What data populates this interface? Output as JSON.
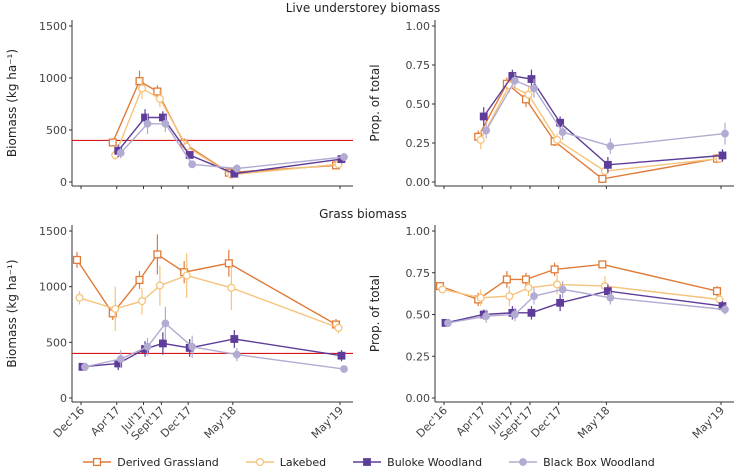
{
  "figure": {
    "colors": {
      "Derived Grassland": "#e07b39",
      "Lakebed": "#f6c37b",
      "Buloke Woodland": "#5e3c99",
      "Black Box Woodland": "#b2abd2",
      "threshold": "#d7191c"
    },
    "x_tick_labels": [
      "Dec'16",
      "Apr'17",
      "Jul'17",
      "Sept'17",
      "Dec'17",
      "May'18",
      "May'19"
    ],
    "row_titles": [
      "Live understorey biomass",
      "Grass biomass"
    ]
  },
  "legend": [
    {
      "name": "Derived Grassland",
      "marker": "square-open"
    },
    {
      "name": "Lakebed",
      "marker": "circle-open"
    },
    {
      "name": "Buloke Woodland",
      "marker": "square-filled"
    },
    {
      "name": "Black Box Woodland",
      "marker": "circle-filled"
    }
  ],
  "chart_data": [
    {
      "type": "line",
      "title": "Live understorey biomass",
      "ylabel": "Biomass (kg ha⁻¹)",
      "ylim": [
        0,
        1500
      ],
      "yticks": [
        0,
        500,
        1000,
        1500
      ],
      "threshold": 400,
      "x": [
        "Apr'17",
        "Jul'17",
        "Sept'17",
        "Dec'17",
        "May'18",
        "May'19"
      ],
      "series": [
        {
          "name": "Derived Grassland",
          "values": [
            380,
            970,
            870,
            370,
            90,
            160
          ],
          "err": [
            40,
            100,
            60,
            50,
            20,
            30
          ]
        },
        {
          "name": "Lakebed",
          "values": [
            260,
            900,
            800,
            340,
            70,
            170
          ],
          "err": [
            50,
            100,
            80,
            60,
            20,
            30
          ]
        },
        {
          "name": "Buloke Woodland",
          "values": [
            300,
            620,
            620,
            260,
            80,
            220
          ],
          "err": [
            60,
            80,
            60,
            30,
            20,
            40
          ]
        },
        {
          "name": "Black Box Woodland",
          "values": [
            280,
            560,
            560,
            170,
            130,
            240
          ],
          "err": [
            50,
            100,
            80,
            30,
            40,
            40
          ]
        }
      ]
    },
    {
      "type": "line",
      "title": "",
      "ylabel": "Prop. of total",
      "ylim": [
        0,
        1
      ],
      "yticks": [
        0.0,
        0.25,
        0.5,
        0.75,
        1.0
      ],
      "x": [
        "Apr'17",
        "Jul'17",
        "Sept'17",
        "Dec'17",
        "May'18",
        "May'19"
      ],
      "series": [
        {
          "name": "Derived Grassland",
          "values": [
            0.29,
            0.63,
            0.53,
            0.26,
            0.02,
            0.15
          ],
          "err": [
            0.04,
            0.04,
            0.05,
            0.03,
            0.02,
            0.03
          ]
        },
        {
          "name": "Lakebed",
          "values": [
            0.27,
            0.62,
            0.56,
            0.27,
            0.07,
            0.15
          ],
          "err": [
            0.06,
            0.05,
            0.05,
            0.04,
            0.02,
            0.03
          ]
        },
        {
          "name": "Buloke Woodland",
          "values": [
            0.42,
            0.68,
            0.66,
            0.38,
            0.11,
            0.17
          ],
          "err": [
            0.06,
            0.04,
            0.06,
            0.04,
            0.05,
            0.04
          ]
        },
        {
          "name": "Black Box Woodland",
          "values": [
            0.33,
            0.65,
            0.6,
            0.32,
            0.23,
            0.31
          ],
          "err": [
            0.05,
            0.05,
            0.06,
            0.05,
            0.05,
            0.07
          ]
        }
      ]
    },
    {
      "type": "line",
      "title": "Grass biomass",
      "ylabel": "Biomass (kg ha⁻¹)",
      "ylim": [
        0,
        1500
      ],
      "yticks": [
        0,
        500,
        1000,
        1500
      ],
      "threshold": 400,
      "x": [
        "Dec'16",
        "Apr'17",
        "Jul'17",
        "Sept'17",
        "Dec'17",
        "May'18",
        "May'19"
      ],
      "series": [
        {
          "name": "Derived Grassland",
          "values": [
            1240,
            760,
            1060,
            1290,
            1130,
            1210,
            660
          ],
          "err": [
            70,
            60,
            80,
            180,
            100,
            120,
            50
          ]
        },
        {
          "name": "Lakebed",
          "values": [
            900,
            800,
            870,
            1010,
            1100,
            990,
            630
          ],
          "err": [
            60,
            200,
            120,
            180,
            200,
            200,
            50
          ]
        },
        {
          "name": "Buloke Woodland",
          "values": [
            280,
            310,
            440,
            490,
            450,
            530,
            380
          ],
          "err": [
            20,
            60,
            70,
            100,
            80,
            80,
            50
          ]
        },
        {
          "name": "Black Box Woodland",
          "values": [
            280,
            350,
            460,
            670,
            460,
            390,
            260
          ],
          "err": [
            20,
            80,
            80,
            150,
            100,
            60,
            20
          ]
        }
      ]
    },
    {
      "type": "line",
      "title": "",
      "ylabel": "Prop. of total",
      "ylim": [
        0,
        1
      ],
      "yticks": [
        0.0,
        0.25,
        0.5,
        0.75,
        1.0
      ],
      "x": [
        "Dec'16",
        "Apr'17",
        "Jul'17",
        "Sept'17",
        "Dec'17",
        "May'18",
        "May'19"
      ],
      "series": [
        {
          "name": "Derived Grassland",
          "values": [
            0.67,
            0.59,
            0.71,
            0.71,
            0.77,
            0.8,
            0.64
          ],
          "err": [
            0.02,
            0.04,
            0.05,
            0.04,
            0.04,
            0.02,
            0.03
          ]
        },
        {
          "name": "Lakebed",
          "values": [
            0.65,
            0.6,
            0.61,
            0.66,
            0.68,
            0.67,
            0.59
          ],
          "err": [
            0.02,
            0.05,
            0.06,
            0.05,
            0.06,
            0.06,
            0.04
          ]
        },
        {
          "name": "Buloke Woodland",
          "values": [
            0.45,
            0.5,
            0.51,
            0.51,
            0.57,
            0.64,
            0.55
          ],
          "err": [
            0.01,
            0.03,
            0.04,
            0.04,
            0.05,
            0.04,
            0.03
          ]
        },
        {
          "name": "Black Box Woodland",
          "values": [
            0.45,
            0.49,
            0.5,
            0.61,
            0.65,
            0.6,
            0.53
          ],
          "err": [
            0.01,
            0.04,
            0.04,
            0.05,
            0.05,
            0.04,
            0.03
          ]
        }
      ]
    }
  ]
}
